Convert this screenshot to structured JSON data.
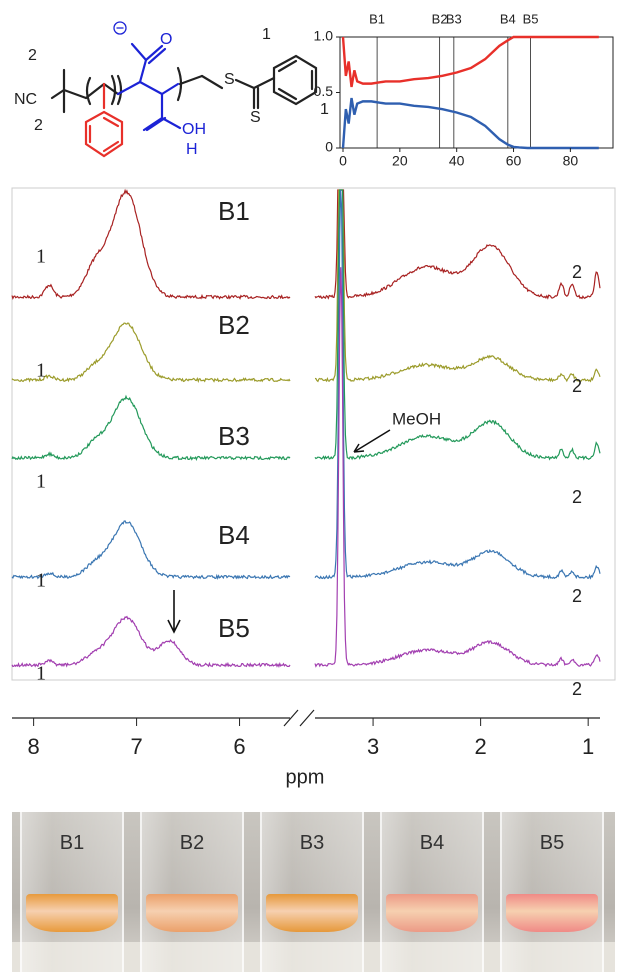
{
  "structure": {
    "texts": [
      "2",
      "NC",
      "2",
      "1",
      "1",
      "O",
      "OH",
      "H",
      "S",
      "S"
    ]
  },
  "chart_data": [
    {
      "type": "line",
      "x": [
        0,
        1,
        2,
        3,
        4,
        5,
        7,
        10,
        15,
        20,
        25,
        30,
        35,
        40,
        45,
        50,
        55,
        58,
        60,
        62,
        65,
        66,
        70,
        80,
        90
      ],
      "series": [
        {
          "color": "#e8302a",
          "values": [
            1.0,
            0.65,
            0.78,
            0.55,
            0.7,
            0.6,
            0.58,
            0.58,
            0.6,
            0.6,
            0.62,
            0.63,
            0.65,
            0.68,
            0.72,
            0.8,
            0.92,
            0.97,
            1.0,
            1.0,
            1.0,
            1.0,
            1.0,
            1.0,
            1.0
          ]
        },
        {
          "color": "#2f5fb0",
          "values": [
            0.0,
            0.35,
            0.22,
            0.45,
            0.3,
            0.4,
            0.42,
            0.42,
            0.4,
            0.4,
            0.38,
            0.37,
            0.35,
            0.32,
            0.28,
            0.2,
            0.08,
            0.03,
            0.01,
            0.005,
            0,
            0,
            0,
            0,
            0
          ]
        }
      ],
      "xlim": [
        0,
        95
      ],
      "xticks": [
        0,
        20,
        40,
        60,
        80
      ],
      "ylim": [
        0,
        1
      ],
      "yticks": [
        0,
        {
          "value": 0.5,
          "label": "0.5"
        },
        {
          "value": 1,
          "label": "1.0"
        }
      ],
      "markers": [
        {
          "label": "B1",
          "x": 12
        },
        {
          "label": "B2",
          "x": 34
        },
        {
          "label": "B3",
          "x": 39
        },
        {
          "label": "B4",
          "x": 58
        },
        {
          "label": "B5",
          "x": 66
        }
      ]
    },
    {
      "type": "nmr",
      "xlabel": "ppm",
      "segments": [
        {
          "xlim": [
            8.21,
            5.51
          ],
          "xticks": [
            8,
            7,
            6
          ]
        },
        {
          "xlim": [
            3.54,
            0.89
          ],
          "xticks": [
            3,
            2,
            1
          ]
        }
      ],
      "samples": [
        {
          "name": "B1",
          "color": "#a82222"
        },
        {
          "name": "B2",
          "color": "#9c9c2c"
        },
        {
          "name": "B3",
          "color": "#23995a"
        },
        {
          "name": "B4",
          "color": "#3a76b2"
        },
        {
          "name": "B5",
          "color": "#a23fb0"
        }
      ],
      "peak_labels": [
        "1",
        "2"
      ],
      "annotation": "MeOH"
    }
  ],
  "photo": {
    "labels": [
      "B1",
      "B2",
      "B3",
      "B4",
      "B5"
    ]
  }
}
